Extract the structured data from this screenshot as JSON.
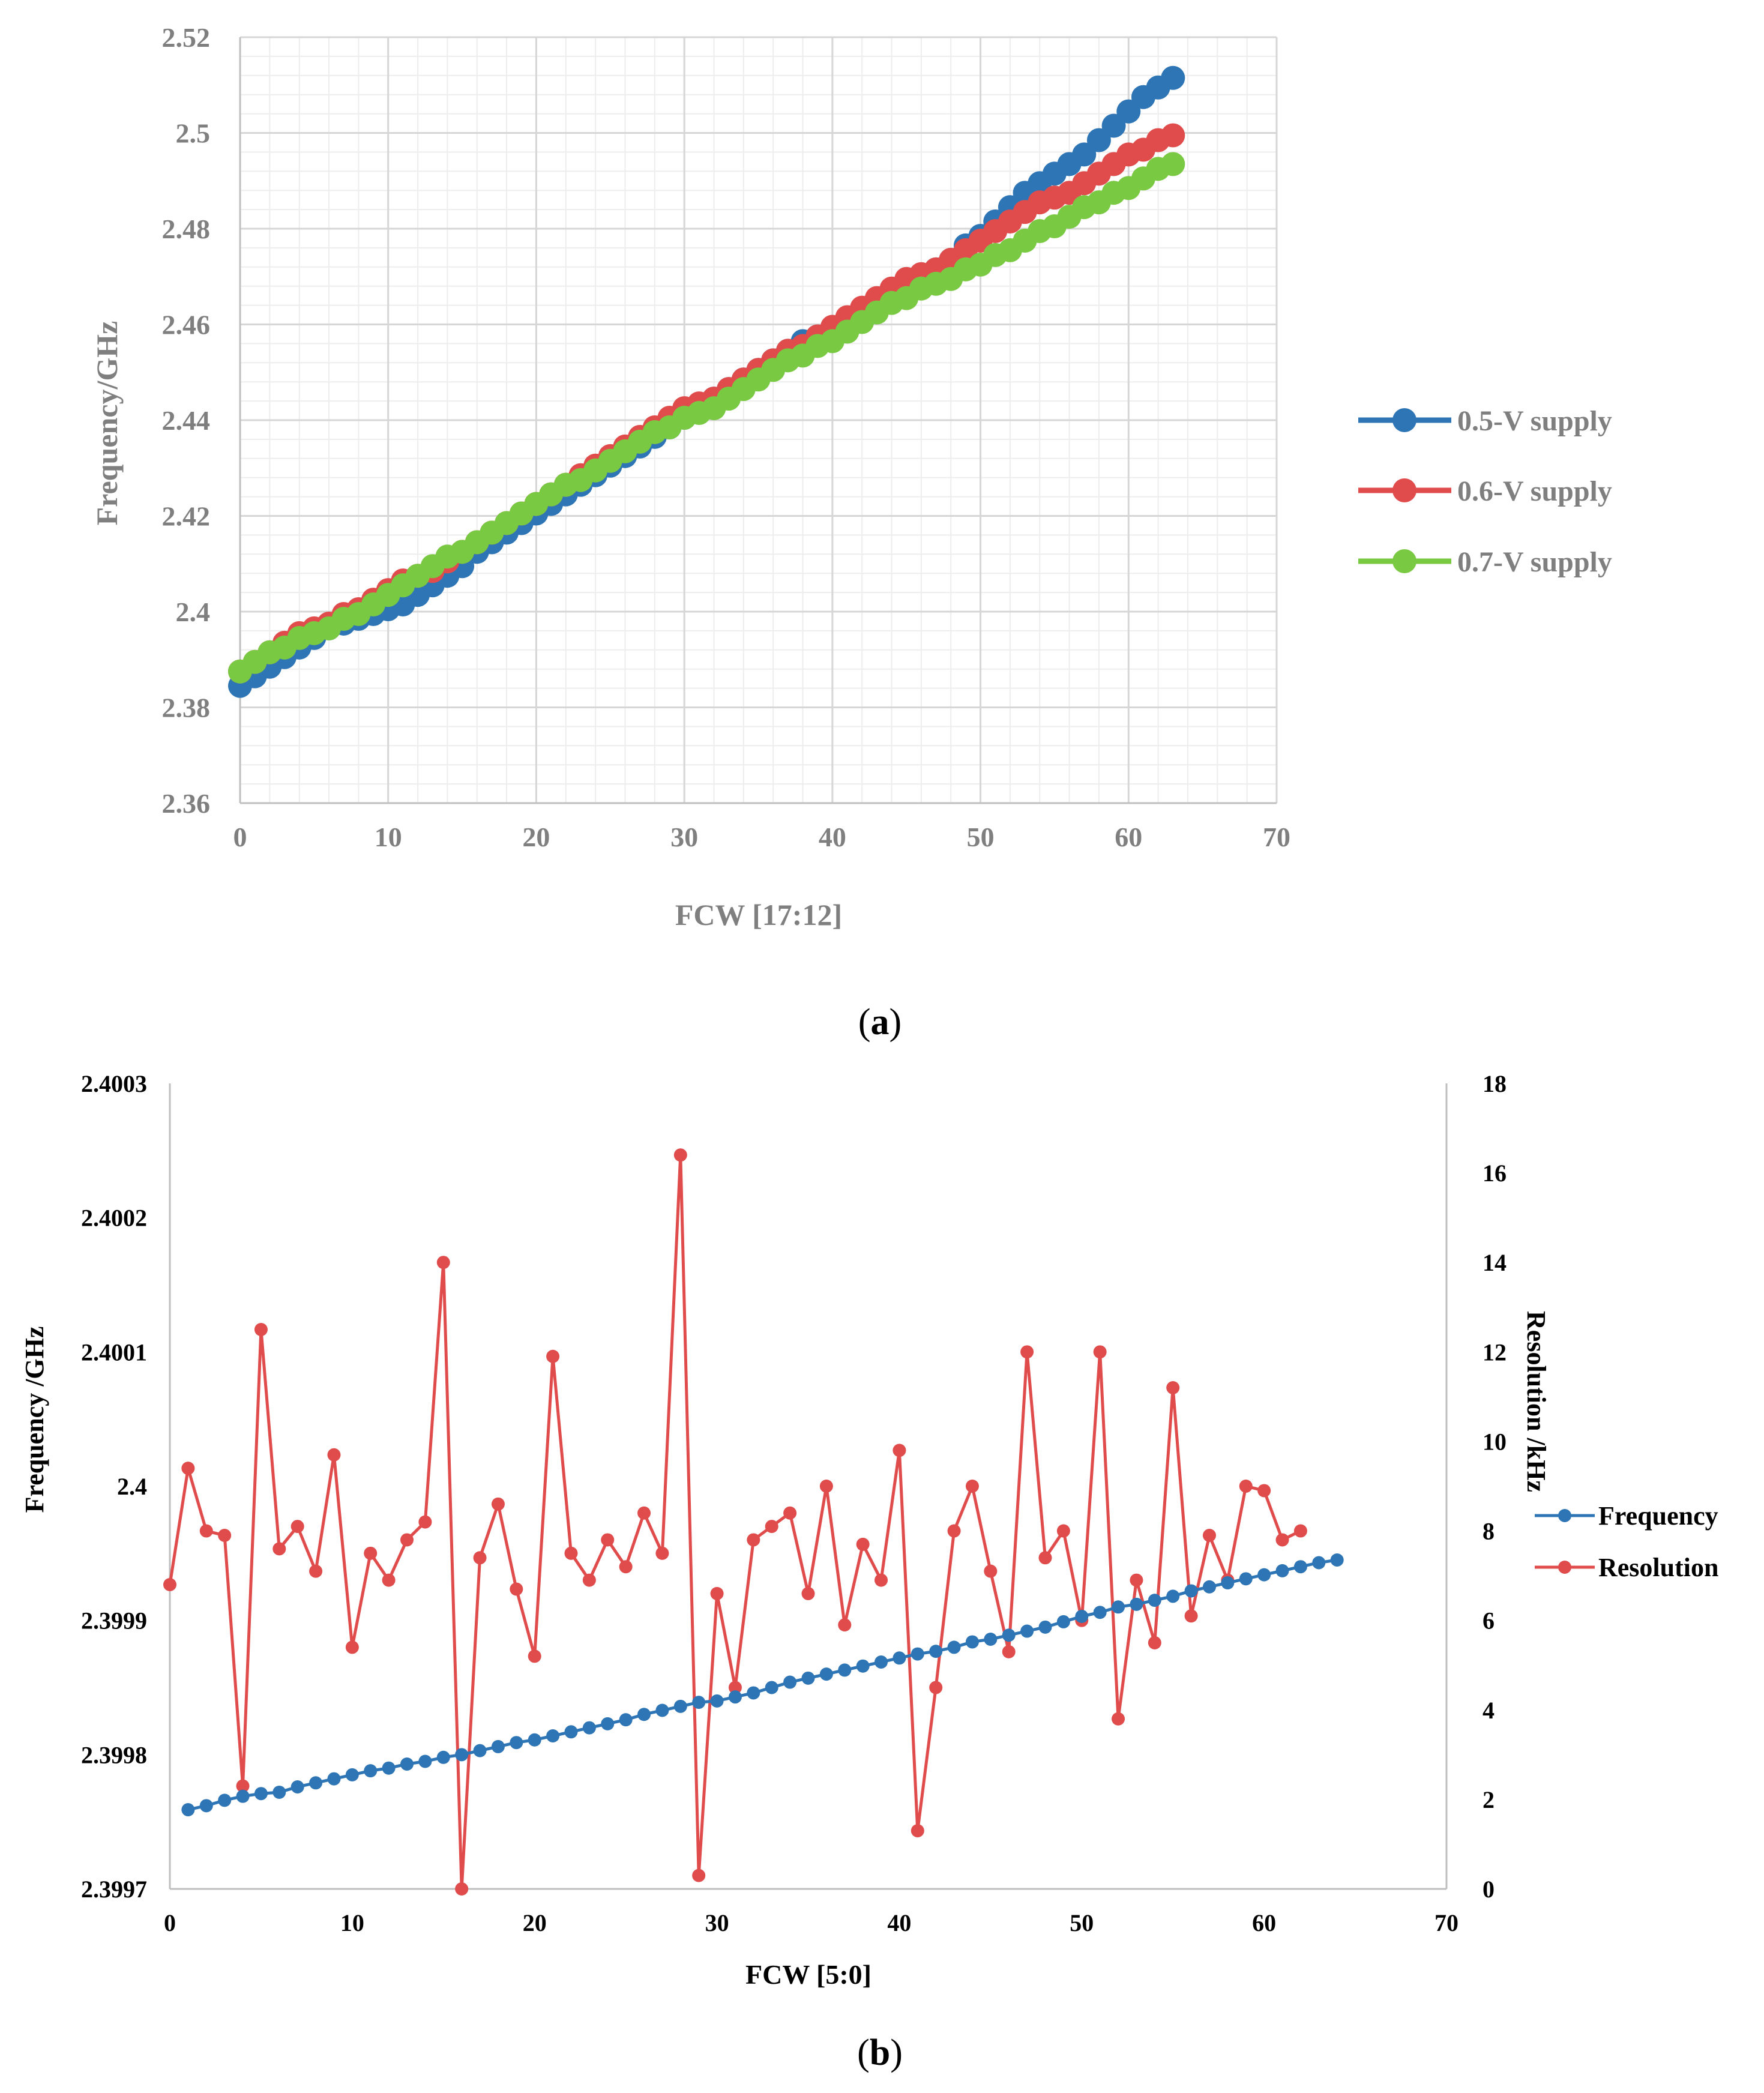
{
  "colors": {
    "blue": "#2e75b6",
    "red": "#e04b4b",
    "green": "#7ac943",
    "grid_major": "#d6d6d6",
    "grid_minor": "#ededed",
    "axis_text": "#7f7f7f",
    "axis_text_b": "#000000"
  },
  "chart_data": [
    {
      "id": "a",
      "type": "line",
      "panel_label": "(a)",
      "panel_letter": "a",
      "title": "",
      "xlabel": "FCW [17:12]",
      "ylabel": "Frequency/GHz",
      "xlim": [
        0,
        70
      ],
      "ylim": [
        2.36,
        2.52
      ],
      "x_ticks": [
        0,
        10,
        20,
        30,
        40,
        50,
        60,
        70
      ],
      "y_ticks": [
        2.36,
        2.38,
        2.4,
        2.42,
        2.44,
        2.46,
        2.48,
        2.5,
        2.52
      ],
      "x_tick_labels": [
        "0",
        "10",
        "20",
        "30",
        "40",
        "50",
        "60",
        "70"
      ],
      "y_tick_labels": [
        "2.36",
        "2.38",
        "2.4",
        "2.42",
        "2.44",
        "2.46",
        "2.48",
        "2.5",
        "2.52"
      ],
      "grid": true,
      "legend_position": "right",
      "x": [
        0,
        1,
        2,
        3,
        4,
        5,
        6,
        7,
        8,
        9,
        10,
        11,
        12,
        13,
        14,
        15,
        16,
        17,
        18,
        19,
        20,
        21,
        22,
        23,
        24,
        25,
        26,
        27,
        28,
        29,
        30,
        31,
        32,
        33,
        34,
        35,
        36,
        37,
        38,
        39,
        40,
        41,
        42,
        43,
        44,
        45,
        46,
        47,
        48,
        49,
        50,
        51,
        52,
        53,
        54,
        55,
        56,
        57,
        58,
        59,
        60,
        61,
        62,
        63
      ],
      "series": [
        {
          "name": "0.5-V supply",
          "color": "#2e75b6",
          "values": [
            2.3845,
            2.3865,
            2.3885,
            2.3905,
            2.3925,
            2.3945,
            2.3965,
            2.3975,
            2.3985,
            2.3995,
            2.4005,
            2.4015,
            2.4035,
            2.4055,
            2.4075,
            2.4095,
            2.4125,
            2.4145,
            2.4165,
            2.4185,
            2.4205,
            2.4225,
            2.4245,
            2.4265,
            2.4285,
            2.4305,
            2.4325,
            2.4345,
            2.4365,
            2.4385,
            2.4405,
            2.4425,
            2.4445,
            2.4465,
            2.4485,
            2.4505,
            2.4525,
            2.4545,
            2.4565,
            2.4575,
            2.4585,
            2.4605,
            2.4625,
            2.4645,
            2.4665,
            2.4685,
            2.4695,
            2.4715,
            2.4735,
            2.4765,
            2.4785,
            2.4815,
            2.4845,
            2.4875,
            2.4895,
            2.4915,
            2.4935,
            2.4955,
            2.4985,
            2.5015,
            2.5045,
            2.5075,
            2.5095,
            2.5115
          ]
        },
        {
          "name": "0.6-V supply",
          "color": "#e04b4b",
          "values": [
            2.3875,
            2.3895,
            2.3915,
            2.3935,
            2.3955,
            2.3965,
            2.3975,
            2.3995,
            2.4005,
            2.4025,
            2.4045,
            2.4065,
            2.4075,
            2.4085,
            2.4105,
            2.4125,
            2.4145,
            2.4165,
            2.4185,
            2.4205,
            2.4225,
            2.4245,
            2.4265,
            2.4285,
            2.4305,
            2.4325,
            2.4345,
            2.4365,
            2.4385,
            2.4405,
            2.4425,
            2.4435,
            2.4445,
            2.4465,
            2.4485,
            2.4505,
            2.4525,
            2.4545,
            2.4555,
            2.4575,
            2.4595,
            2.4615,
            2.4635,
            2.4655,
            2.4675,
            2.4695,
            2.4705,
            2.4715,
            2.4735,
            2.4755,
            2.4775,
            2.4795,
            2.4815,
            2.4835,
            2.4855,
            2.4865,
            2.4875,
            2.4895,
            2.4915,
            2.4935,
            2.4955,
            2.4965,
            2.4985,
            2.4995
          ]
        },
        {
          "name": "0.7-V supply",
          "color": "#7ac943",
          "values": [
            2.3875,
            2.3895,
            2.3915,
            2.3925,
            2.3945,
            2.3955,
            2.3965,
            2.3985,
            2.3995,
            2.4015,
            2.4035,
            2.4055,
            2.4075,
            2.4095,
            2.4115,
            2.4125,
            2.4145,
            2.4165,
            2.4185,
            2.4205,
            2.4225,
            2.4245,
            2.4265,
            2.4275,
            2.4295,
            2.4315,
            2.4335,
            2.4355,
            2.4375,
            2.4385,
            2.4405,
            2.4415,
            2.4425,
            2.4445,
            2.4465,
            2.4485,
            2.4505,
            2.4525,
            2.4535,
            2.4555,
            2.4565,
            2.4585,
            2.4605,
            2.4625,
            2.4645,
            2.4655,
            2.4675,
            2.4685,
            2.4695,
            2.4715,
            2.4725,
            2.4745,
            2.4755,
            2.4775,
            2.4795,
            2.4805,
            2.4825,
            2.4845,
            2.4855,
            2.4875,
            2.4885,
            2.4905,
            2.4925,
            2.4935
          ]
        }
      ]
    },
    {
      "id": "b",
      "type": "line",
      "panel_label": "(b)",
      "panel_letter": "b",
      "title": "",
      "xlabel": "FCW [5:0]",
      "ylabel": "Frequency /GHz",
      "y2label": "Resolution /kHz",
      "xlim": [
        0,
        70
      ],
      "ylim": [
        2.3997,
        2.4003
      ],
      "y2lim": [
        0,
        18
      ],
      "x_ticks": [
        0,
        10,
        20,
        30,
        40,
        50,
        60,
        70
      ],
      "y_ticks": [
        2.3997,
        2.3998,
        2.3999,
        2.4,
        2.4001,
        2.4002,
        2.4003
      ],
      "y2_ticks": [
        0,
        2,
        4,
        6,
        8,
        10,
        12,
        14,
        16,
        18
      ],
      "x_tick_labels": [
        "0",
        "10",
        "20",
        "30",
        "40",
        "50",
        "60",
        "70"
      ],
      "y_tick_labels": [
        "2.3997",
        "2.3998",
        "2.3999",
        "2.4",
        "2.4001",
        "2.4002",
        "2.4003"
      ],
      "y2_tick_labels": [
        "0",
        "2",
        "4",
        "6",
        "8",
        "10",
        "12",
        "14",
        "16",
        "18"
      ],
      "grid": false,
      "legend_position": "right",
      "series": [
        {
          "name": "Frequency",
          "axis": "left",
          "color": "#2e75b6",
          "x": [
            1,
            2,
            3,
            4,
            5,
            6,
            7,
            8,
            9,
            10,
            11,
            12,
            13,
            14,
            15,
            16,
            17,
            18,
            19,
            20,
            21,
            22,
            23,
            24,
            25,
            26,
            27,
            28,
            29,
            30,
            31,
            32,
            33,
            34,
            35,
            36,
            37,
            38,
            39,
            40,
            41,
            42,
            43,
            44,
            45,
            46,
            47,
            48,
            49,
            50,
            51,
            52,
            53,
            54,
            55,
            56,
            57,
            58,
            59,
            60,
            61,
            62,
            63,
            64
          ],
          "values": [
            2.399759,
            2.399762,
            2.399766,
            2.399769,
            2.399771,
            2.399772,
            2.399776,
            2.399779,
            2.399782,
            2.399785,
            2.399788,
            2.39979,
            2.399793,
            2.399795,
            2.399798,
            2.3998,
            2.399803,
            2.399806,
            2.399809,
            2.399811,
            2.399814,
            2.399817,
            2.39982,
            2.399823,
            2.399826,
            2.39983,
            2.399833,
            2.399836,
            2.399839,
            2.39984,
            2.399843,
            2.399846,
            2.39985,
            2.399854,
            2.399857,
            2.39986,
            2.399863,
            2.399866,
            2.399869,
            2.399872,
            2.399875,
            2.399877,
            2.39988,
            2.399884,
            2.399886,
            2.399889,
            2.399892,
            2.399895,
            2.399899,
            2.399903,
            2.399906,
            2.39991,
            2.399912,
            2.399915,
            2.399918,
            2.399922,
            2.399925,
            2.399928,
            2.399931,
            2.399934,
            2.399937,
            2.39994,
            2.399943,
            2.399945
          ]
        },
        {
          "name": "Resolution",
          "axis": "right",
          "color": "#e04b4b",
          "x": [
            0,
            1,
            2,
            3,
            4,
            5,
            6,
            7,
            8,
            9,
            10,
            11,
            12,
            13,
            14,
            15,
            16,
            17,
            18,
            19,
            20,
            21,
            22,
            23,
            24,
            25,
            26,
            27,
            28,
            29,
            30,
            31,
            32,
            33,
            34,
            35,
            36,
            37,
            38,
            39,
            40,
            41,
            42,
            43,
            44,
            45,
            46,
            47,
            48,
            49,
            50,
            51,
            52,
            53,
            54,
            55,
            56,
            57,
            58,
            59,
            60,
            61,
            62
          ],
          "values": [
            6.8,
            9.4,
            8,
            7.9,
            2.3,
            12.5,
            7.6,
            8.1,
            7.1,
            9.7,
            5.4,
            7.5,
            6.9,
            7.8,
            8.2,
            14,
            0,
            7.4,
            8.6,
            6.7,
            5.2,
            11.9,
            7.5,
            6.9,
            7.8,
            7.2,
            8.4,
            7.5,
            16.4,
            0.3,
            6.6,
            4.5,
            7.8,
            8.1,
            8.4,
            6.6,
            9,
            5.9,
            7.7,
            6.9,
            9.8,
            1.3,
            4.5,
            8,
            9,
            7.1,
            5.3,
            12,
            7.4,
            8,
            6,
            12,
            3.8,
            6.9,
            5.5,
            11.2,
            6.1,
            7.9,
            6.9,
            9,
            8.9,
            7.8,
            8
          ]
        }
      ]
    }
  ]
}
